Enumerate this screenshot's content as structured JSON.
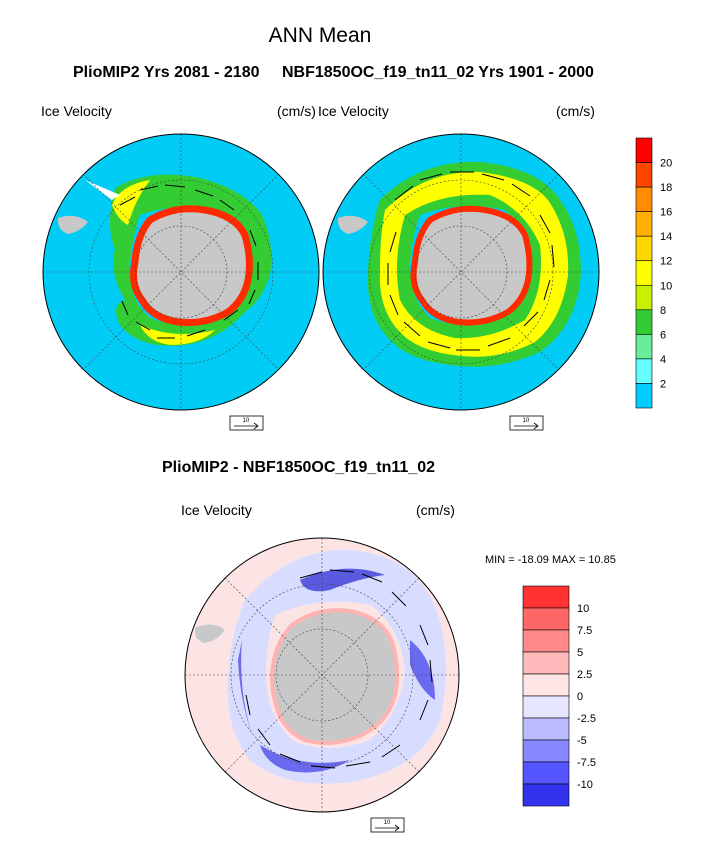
{
  "title": "ANN Mean",
  "panels": {
    "left": {
      "heading": "PlioMIP2  Yrs 2081 - 2180",
      "field_label": "Ice Velocity",
      "units": "(cm/s)"
    },
    "right": {
      "heading": "NBF1850OC_f19_tn11_02  Yrs 1901 - 2000",
      "field_label": "Ice Velocity",
      "units": "(cm/s)"
    },
    "bottom": {
      "heading": "PlioMIP2 - NBF1850OC_f19_tn11_02",
      "field_label": "Ice Velocity",
      "units": "(cm/s)",
      "stats": "MIN = -18.09 MAX =  10.85"
    }
  },
  "reference_vector": {
    "label": "10"
  },
  "colorbar_top": {
    "labels": [
      "20",
      "18",
      "16",
      "14",
      "12",
      "10",
      "8",
      "6",
      "4",
      "2"
    ],
    "colors": [
      "#ff0000",
      "#ff4500",
      "#ff8c00",
      "#ffb000",
      "#ffd700",
      "#ffff00",
      "#c8f000",
      "#33cc33",
      "#66ee99",
      "#66ffff",
      "#00ccff"
    ]
  },
  "colorbar_diff": {
    "labels": [
      "10",
      "7.5",
      "5",
      "2.5",
      "0",
      "-2.5",
      "-5",
      "-7.5",
      "-10"
    ],
    "colors": [
      "#ff3333",
      "#ff6666",
      "#ff8888",
      "#ffbbbb",
      "#ffe6e6",
      "#e6e6ff",
      "#bbbbff",
      "#8888ff",
      "#5555ff",
      "#3333ee"
    ]
  },
  "map_colors": {
    "ocean": "#00ccf5",
    "land": "#c8c8c8",
    "diff_background": "#fde4e4"
  }
}
